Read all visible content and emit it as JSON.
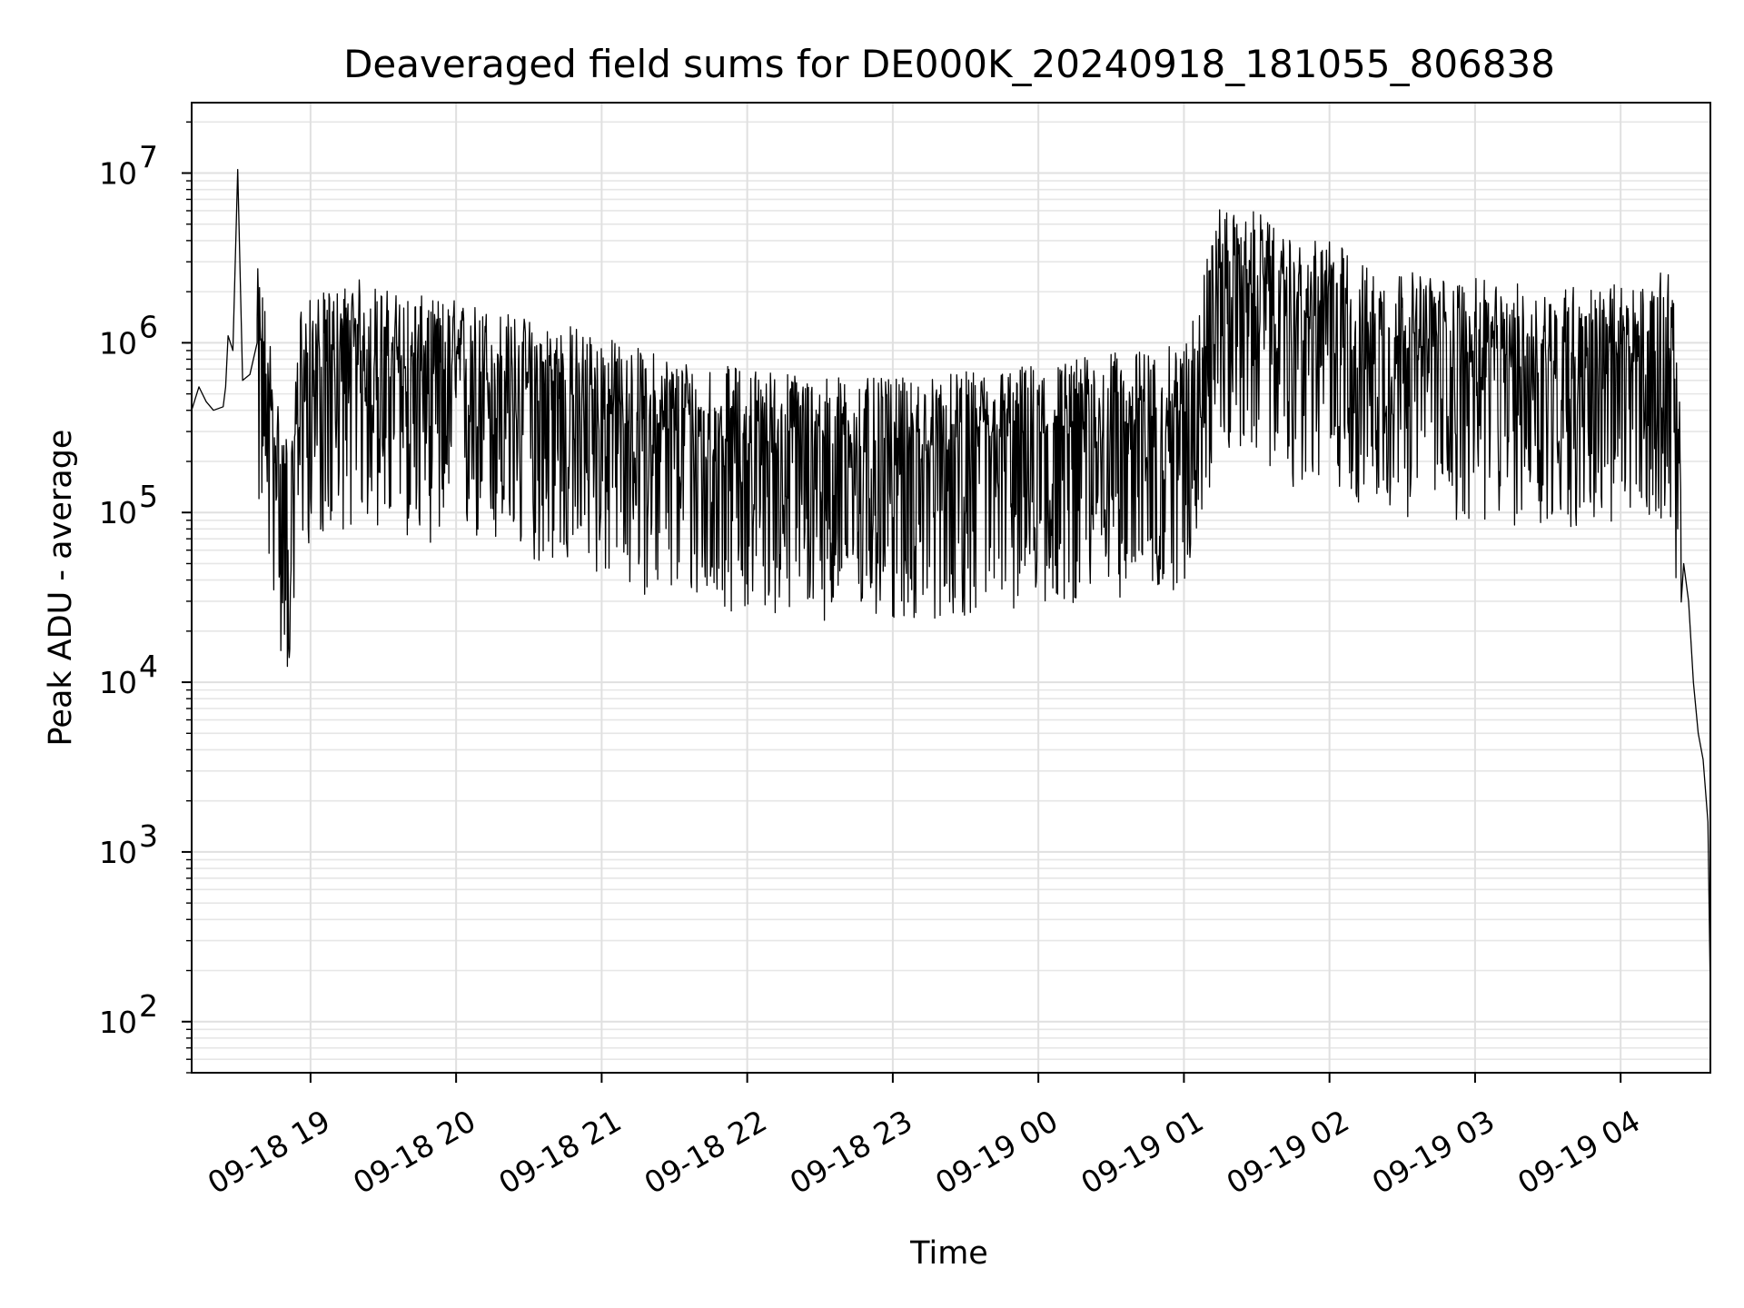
{
  "chart_data": {
    "type": "line",
    "title": "Deaveraged field sums for DE000K_20240918_181055_806838",
    "xlabel": "Time",
    "ylabel": "Peak ADU - average",
    "yscale": "log",
    "ylim": [
      50,
      26000000
    ],
    "xlim": [
      "2024-09-18 18:11",
      "2024-09-19 04:37"
    ],
    "grid": true,
    "line_color": "#000000",
    "x_ticks": [
      {
        "t": "2024-09-18 19:00",
        "label": "09-18 19"
      },
      {
        "t": "2024-09-18 20:00",
        "label": "09-18 20"
      },
      {
        "t": "2024-09-18 21:00",
        "label": "09-18 21"
      },
      {
        "t": "2024-09-18 22:00",
        "label": "09-18 22"
      },
      {
        "t": "2024-09-18 23:00",
        "label": "09-18 23"
      },
      {
        "t": "2024-09-19 00:00",
        "label": "09-19 00"
      },
      {
        "t": "2024-09-19 01:00",
        "label": "09-19 01"
      },
      {
        "t": "2024-09-19 02:00",
        "label": "09-19 02"
      },
      {
        "t": "2024-09-19 03:00",
        "label": "09-19 03"
      },
      {
        "t": "2024-09-19 04:00",
        "label": "09-19 04"
      }
    ],
    "y_ticks": [
      {
        "value": 100,
        "base": "10",
        "exp": "2"
      },
      {
        "value": 1000,
        "base": "10",
        "exp": "3"
      },
      {
        "value": 10000,
        "base": "10",
        "exp": "4"
      },
      {
        "value": 100000,
        "base": "10",
        "exp": "5"
      },
      {
        "value": 1000000,
        "base": "10",
        "exp": "6"
      },
      {
        "value": 10000000,
        "base": "10",
        "exp": "7"
      }
    ],
    "series": [
      {
        "x": [
          "2024-09-18 18:11",
          "2024-09-18 18:14",
          "2024-09-18 18:17",
          "2024-09-18 18:20",
          "2024-09-18 18:24",
          "2024-09-18 18:25",
          "2024-09-18 18:26",
          "2024-09-18 18:28",
          "2024-09-18 18:30",
          "2024-09-18 18:32",
          "2024-09-18 18:35",
          "2024-09-18 18:38",
          "2024-09-18 18:40",
          "2024-09-18 18:41",
          "2024-09-18 18:42",
          "2024-09-18 18:45",
          "2024-09-18 18:47",
          "2024-09-18 18:50",
          "2024-09-18 18:53",
          "2024-09-18 18:55",
          "2024-09-18 18:57",
          "2024-09-18 19:00",
          "2024-09-18 19:05",
          "2024-09-18 19:10",
          "2024-09-18 19:15",
          "2024-09-18 19:20",
          "2024-09-18 19:25",
          "2024-09-18 19:30",
          "2024-09-18 19:40",
          "2024-09-18 19:50",
          "2024-09-18 20:00",
          "2024-09-18 20:10",
          "2024-09-18 20:20",
          "2024-09-18 20:30",
          "2024-09-18 20:40",
          "2024-09-18 20:50",
          "2024-09-18 21:00",
          "2024-09-18 21:10",
          "2024-09-18 21:20",
          "2024-09-18 21:30",
          "2024-09-18 21:40",
          "2024-09-18 21:50",
          "2024-09-18 22:00",
          "2024-09-18 22:10",
          "2024-09-18 22:20",
          "2024-09-18 22:30",
          "2024-09-18 22:40",
          "2024-09-18 22:50",
          "2024-09-18 23:00",
          "2024-09-18 23:10",
          "2024-09-18 23:20",
          "2024-09-18 23:30",
          "2024-09-18 23:40",
          "2024-09-18 23:50",
          "2024-09-19 00:00",
          "2024-09-19 00:10",
          "2024-09-19 00:20",
          "2024-09-19 00:30",
          "2024-09-19 00:40",
          "2024-09-19 00:50",
          "2024-09-19 01:00",
          "2024-09-19 01:05",
          "2024-09-19 01:10",
          "2024-09-19 01:15",
          "2024-09-19 01:20",
          "2024-09-19 01:30",
          "2024-09-19 01:40",
          "2024-09-19 01:50",
          "2024-09-19 02:00",
          "2024-09-19 02:10",
          "2024-09-19 02:20",
          "2024-09-19 02:30",
          "2024-09-19 02:40",
          "2024-09-19 02:50",
          "2024-09-19 03:00",
          "2024-09-19 03:10",
          "2024-09-19 03:20",
          "2024-09-19 03:30",
          "2024-09-19 03:40",
          "2024-09-19 03:50",
          "2024-09-19 04:00",
          "2024-09-19 04:10",
          "2024-09-19 04:20",
          "2024-09-19 04:22",
          "2024-09-19 04:24",
          "2024-09-19 04:26",
          "2024-09-19 04:28",
          "2024-09-19 04:30",
          "2024-09-19 04:32",
          "2024-09-19 04:34",
          "2024-09-19 04:36",
          "2024-09-19 04:37"
        ],
        "y": [
          400000,
          550000,
          450000,
          400000,
          420000,
          550000,
          1100000,
          900000,
          10500000,
          600000,
          650000,
          1000000,
          800000,
          650000,
          500000,
          300000,
          150000,
          110000,
          90000,
          700000,
          600000,
          650000,
          700000,
          750000,
          800000,
          850000,
          800000,
          750000,
          700000,
          650000,
          650000,
          600000,
          550000,
          500000,
          480000,
          450000,
          400000,
          350000,
          320000,
          300000,
          280000,
          260000,
          260000,
          250000,
          240000,
          230000,
          230000,
          220000,
          220000,
          220000,
          230000,
          240000,
          250000,
          260000,
          270000,
          280000,
          300000,
          310000,
          320000,
          330000,
          350000,
          700000,
          1200000,
          2500000,
          2000000,
          2200000,
          1500000,
          1300000,
          1600000,
          1100000,
          1000000,
          950000,
          900000,
          850000,
          850000,
          800000,
          800000,
          750000,
          800000,
          750000,
          800000,
          780000,
          1000000,
          600000,
          200000,
          50000,
          30000,
          10000,
          5000,
          3500,
          1500,
          140
        ]
      }
    ]
  }
}
